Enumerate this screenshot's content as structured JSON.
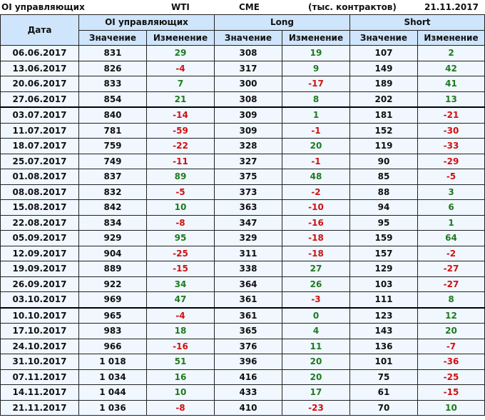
{
  "title": {
    "left": "OI управляющих",
    "instrument": "WTI",
    "exchange": "CME",
    "units": "(тыс. контрактов)",
    "date": "21.11.2017"
  },
  "headers": {
    "date": "Дата",
    "oi": "OI управляющих",
    "long": "Long",
    "short": "Short",
    "value": "Значение",
    "change": "Изменение"
  },
  "colors": {
    "positive": "#1e7a1e",
    "negative": "#d01010",
    "header_bg": "#cfe5fb"
  },
  "rows": [
    [
      "06.06.2017",
      "831",
      "29",
      "308",
      "19",
      "107",
      "2"
    ],
    [
      "13.06.2017",
      "826",
      "-4",
      "317",
      "9",
      "149",
      "42"
    ],
    [
      "20.06.2017",
      "833",
      "7",
      "300",
      "-17",
      "189",
      "41"
    ],
    [
      "27.06.2017",
      "854",
      "21",
      "308",
      "8",
      "202",
      "13"
    ],
    [
      "03.07.2017",
      "840",
      "-14",
      "309",
      "1",
      "181",
      "-21"
    ],
    [
      "11.07.2017",
      "781",
      "-59",
      "309",
      "-1",
      "152",
      "-30"
    ],
    [
      "18.07.2017",
      "759",
      "-22",
      "328",
      "20",
      "119",
      "-33"
    ],
    [
      "25.07.2017",
      "749",
      "-11",
      "327",
      "-1",
      "90",
      "-29"
    ],
    [
      "01.08.2017",
      "837",
      "89",
      "375",
      "48",
      "85",
      "-5"
    ],
    [
      "08.08.2017",
      "832",
      "-5",
      "373",
      "-2",
      "88",
      "3"
    ],
    [
      "15.08.2017",
      "842",
      "10",
      "363",
      "-10",
      "94",
      "6"
    ],
    [
      "22.08.2017",
      "834",
      "-8",
      "347",
      "-16",
      "95",
      "1"
    ],
    [
      "05.09.2017",
      "929",
      "95",
      "329",
      "-18",
      "159",
      "64"
    ],
    [
      "12.09.2017",
      "904",
      "-25",
      "311",
      "-18",
      "157",
      "-2"
    ],
    [
      "19.09.2017",
      "889",
      "-15",
      "338",
      "27",
      "129",
      "-27"
    ],
    [
      "26.09.2017",
      "922",
      "34",
      "364",
      "26",
      "103",
      "-27"
    ],
    [
      "03.10.2017",
      "969",
      "47",
      "361",
      "-3",
      "111",
      "8"
    ],
    [
      "10.10.2017",
      "965",
      "-4",
      "361",
      "0",
      "123",
      "12"
    ],
    [
      "17.10.2017",
      "983",
      "18",
      "365",
      "4",
      "143",
      "20"
    ],
    [
      "24.10.2017",
      "966",
      "-16",
      "376",
      "11",
      "136",
      "-7"
    ],
    [
      "31.10.2017",
      "1 018",
      "51",
      "396",
      "20",
      "101",
      "-36"
    ],
    [
      "07.11.2017",
      "1 034",
      "16",
      "416",
      "20",
      "75",
      "-25"
    ],
    [
      "14.11.2017",
      "1 044",
      "10",
      "433",
      "17",
      "61",
      "-15"
    ],
    [
      "21.11.2017",
      "1 036",
      "-8",
      "410",
      "-23",
      "70",
      "10"
    ]
  ]
}
